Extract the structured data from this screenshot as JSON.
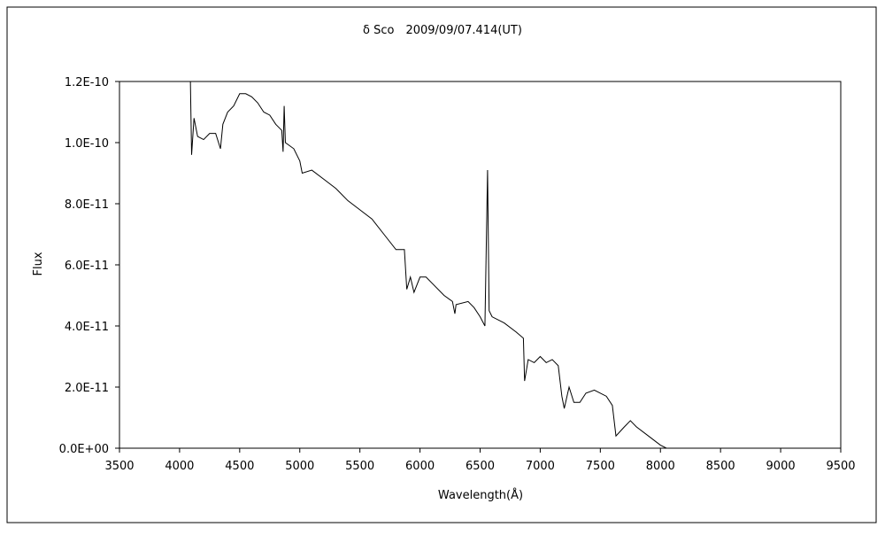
{
  "chart_data": {
    "type": "line",
    "title": "δ Sco　2009/09/07.414(UT)",
    "x_label": "Wavelength(Å)",
    "y_label": "Flux",
    "color": "#000000",
    "grid": false,
    "xlim": [
      3500,
      9500
    ],
    "xticks": [
      3500,
      4000,
      4500,
      5000,
      5500,
      6000,
      6500,
      7000,
      7500,
      8000,
      8500,
      9000,
      9500
    ],
    "ylim": [
      0,
      1.2e-10
    ],
    "yticks": [
      {
        "value": 0,
        "label": "0.0E+00"
      },
      {
        "value": 2e-11,
        "label": "2.0E-11"
      },
      {
        "value": 4e-11,
        "label": "4.0E-11"
      },
      {
        "value": 6e-11,
        "label": "6.0E-11"
      },
      {
        "value": 8e-11,
        "label": "8.0E-11"
      },
      {
        "value": 1e-10,
        "label": "1.0E-10"
      },
      {
        "value": 1.2e-10,
        "label": "1.2E-10"
      }
    ],
    "x": [
      4090,
      4100,
      4120,
      4150,
      4200,
      4250,
      4300,
      4340,
      4360,
      4400,
      4450,
      4500,
      4550,
      4600,
      4650,
      4700,
      4750,
      4800,
      4850,
      4861,
      4870,
      4880,
      4950,
      5000,
      5020,
      5100,
      5200,
      5300,
      5400,
      5500,
      5600,
      5700,
      5800,
      5870,
      5890,
      5920,
      5950,
      6000,
      6050,
      6100,
      6200,
      6270,
      6290,
      6300,
      6400,
      6450,
      6500,
      6540,
      6562,
      6575,
      6600,
      6700,
      6800,
      6860,
      6870,
      6900,
      6950,
      7000,
      7050,
      7100,
      7150,
      7180,
      7200,
      7240,
      7280,
      7330,
      7380,
      7450,
      7550,
      7600,
      7630,
      7700,
      7750,
      7800,
      7900,
      8000,
      8050,
      9500
    ],
    "values": [
      1.2e-10,
      9.6e-11,
      1.08e-10,
      1.02e-10,
      1.01e-10,
      1.03e-10,
      1.03e-10,
      9.8e-11,
      1.06e-10,
      1.1e-10,
      1.12e-10,
      1.16e-10,
      1.16e-10,
      1.15e-10,
      1.13e-10,
      1.1e-10,
      1.09e-10,
      1.06e-10,
      1.04e-10,
      9.7e-11,
      1.12e-10,
      1e-10,
      9.8e-11,
      9.4e-11,
      9e-11,
      9.1e-11,
      8.8e-11,
      8.5e-11,
      8.1e-11,
      7.8e-11,
      7.5e-11,
      7e-11,
      6.5e-11,
      6.5e-11,
      5.2e-11,
      5.6e-11,
      5.1e-11,
      5.6e-11,
      5.6e-11,
      5.4e-11,
      5e-11,
      4.8e-11,
      4.4e-11,
      4.7e-11,
      4.8e-11,
      4.6e-11,
      4.3e-11,
      4e-11,
      9.1e-11,
      4.5e-11,
      4.3e-11,
      4.1e-11,
      3.8e-11,
      3.6e-11,
      2.2e-11,
      2.9e-11,
      2.8e-11,
      3e-11,
      2.8e-11,
      2.9e-11,
      2.7e-11,
      1.7e-11,
      1.3e-11,
      2e-11,
      1.5e-11,
      1.5e-11,
      1.8e-11,
      1.9e-11,
      1.7e-11,
      1.4e-11,
      4e-12,
      7e-12,
      9e-12,
      7e-12,
      4e-12,
      1e-12,
      0,
      0
    ]
  }
}
